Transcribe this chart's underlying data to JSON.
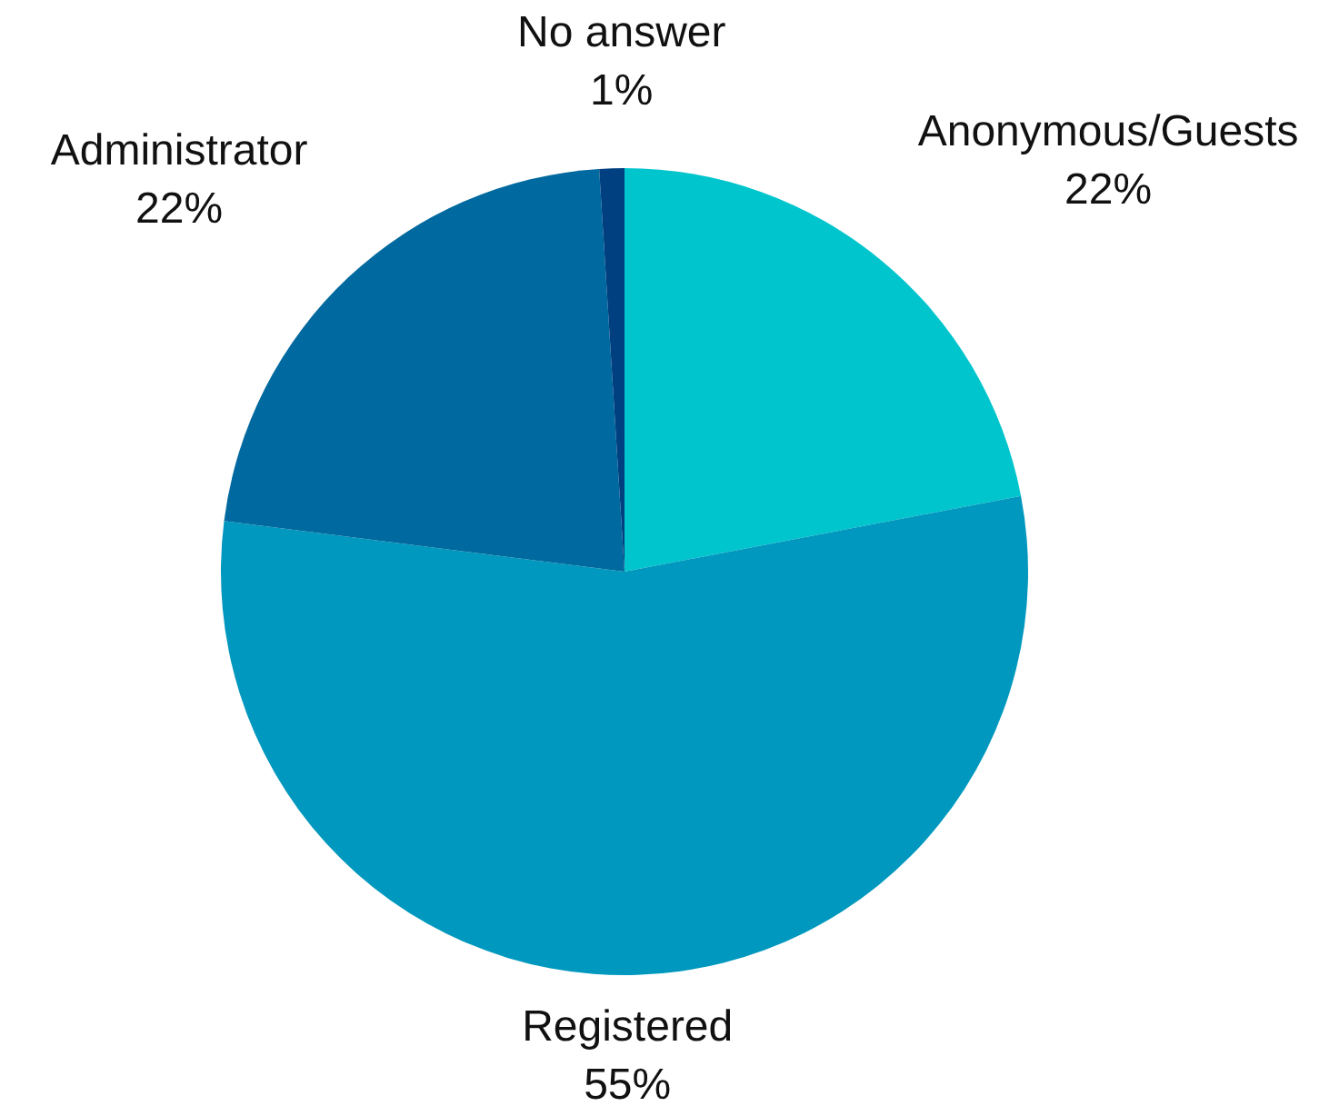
{
  "chart_data": {
    "type": "pie",
    "categories": [
      "Anonymous/Guests",
      "Registered",
      "Administrator",
      "No answer"
    ],
    "values": [
      22,
      55,
      22,
      1
    ],
    "colors": [
      "#00c5cd",
      "#0098be",
      "#00699f",
      "#003f80"
    ],
    "value_labels": [
      "22%",
      "55%",
      "22%",
      "1%"
    ]
  }
}
